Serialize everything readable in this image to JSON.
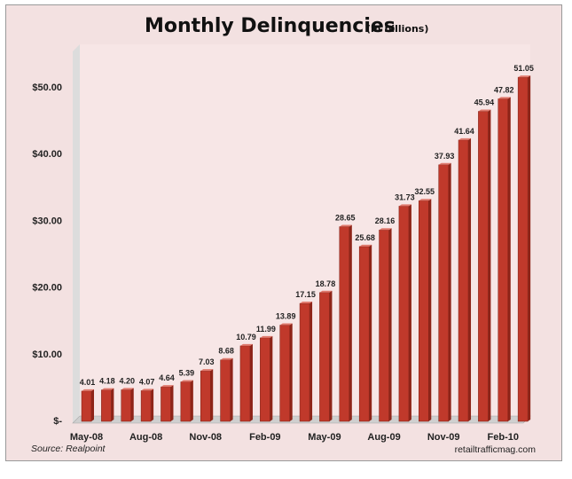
{
  "chart_data": {
    "type": "bar",
    "title": "Monthly Delinquencies",
    "subtitle": "(in billions)",
    "categories": [
      "May-08",
      "Jun-08",
      "Jul-08",
      "Aug-08",
      "Sep-08",
      "Oct-08",
      "Nov-08",
      "Dec-08",
      "Jan-09",
      "Feb-09",
      "Mar-09",
      "Apr-09",
      "May-09",
      "Jun-09",
      "Jul-09",
      "Aug-09",
      "Sep-09",
      "Oct-09",
      "Nov-09",
      "Dec-09",
      "Jan-10",
      "Feb-10",
      "Mar-10"
    ],
    "x_tick_labels": [
      "May-08",
      "Aug-08",
      "Nov-08",
      "Feb-09",
      "May-09",
      "Aug-09",
      "Nov-09",
      "Feb-10"
    ],
    "values": [
      4.01,
      4.18,
      4.2,
      4.07,
      4.64,
      5.39,
      7.03,
      8.68,
      10.79,
      11.99,
      13.89,
      17.15,
      18.78,
      28.65,
      25.68,
      28.16,
      31.73,
      32.55,
      37.93,
      41.64,
      45.94,
      47.82,
      51.05
    ],
    "data_labels": [
      "4.01",
      "4.18",
      "4.20",
      "4.07",
      "4.64",
      "5.39",
      "7.03",
      "8.68",
      "10.79",
      "11.99",
      "13.89",
      "17.15",
      "18.78",
      "28.65",
      "25.68",
      "28.16",
      "31.73",
      "32.55",
      "37.93",
      "41.64",
      "45.94",
      "47.82",
      "51.05"
    ],
    "y_tick_values": [
      0,
      10,
      20,
      30,
      40,
      50
    ],
    "y_tick_labels": [
      "$-",
      "$10.00",
      "$20.00",
      "$30.00",
      "$40.00",
      "$50.00"
    ],
    "ylim": [
      0,
      55
    ],
    "grid": false,
    "bar_color": "#c0392b",
    "plot_background": "#f7e6e6",
    "floor_color": "#cfcfcf",
    "source": "Source: Realpoint",
    "credit": "retailtrafficmag.com"
  }
}
